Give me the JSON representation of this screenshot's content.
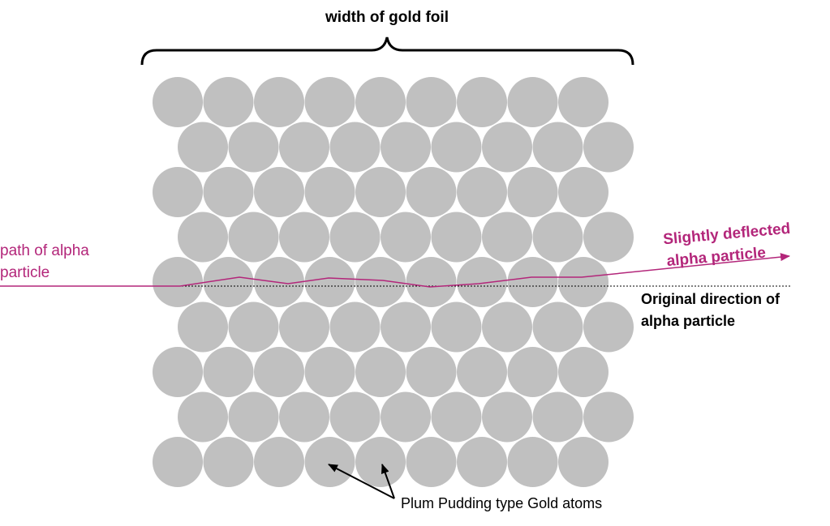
{
  "labels": {
    "foil_width": "width of gold foil",
    "path_line1": "path of alpha",
    "path_line2": "particle",
    "deflected_line1": "Slightly deflected",
    "deflected_line2": "alpha particle",
    "original_line1": "Original direction of",
    "original_line2": "alpha particle",
    "atoms": "Plum Pudding type Gold atoms"
  },
  "lattice": {
    "rows": 9,
    "atoms_per_row": 9
  },
  "colors": {
    "atom": "#c0c0c0",
    "alpha_path": "#b3267a",
    "text_dark": "#000000"
  }
}
